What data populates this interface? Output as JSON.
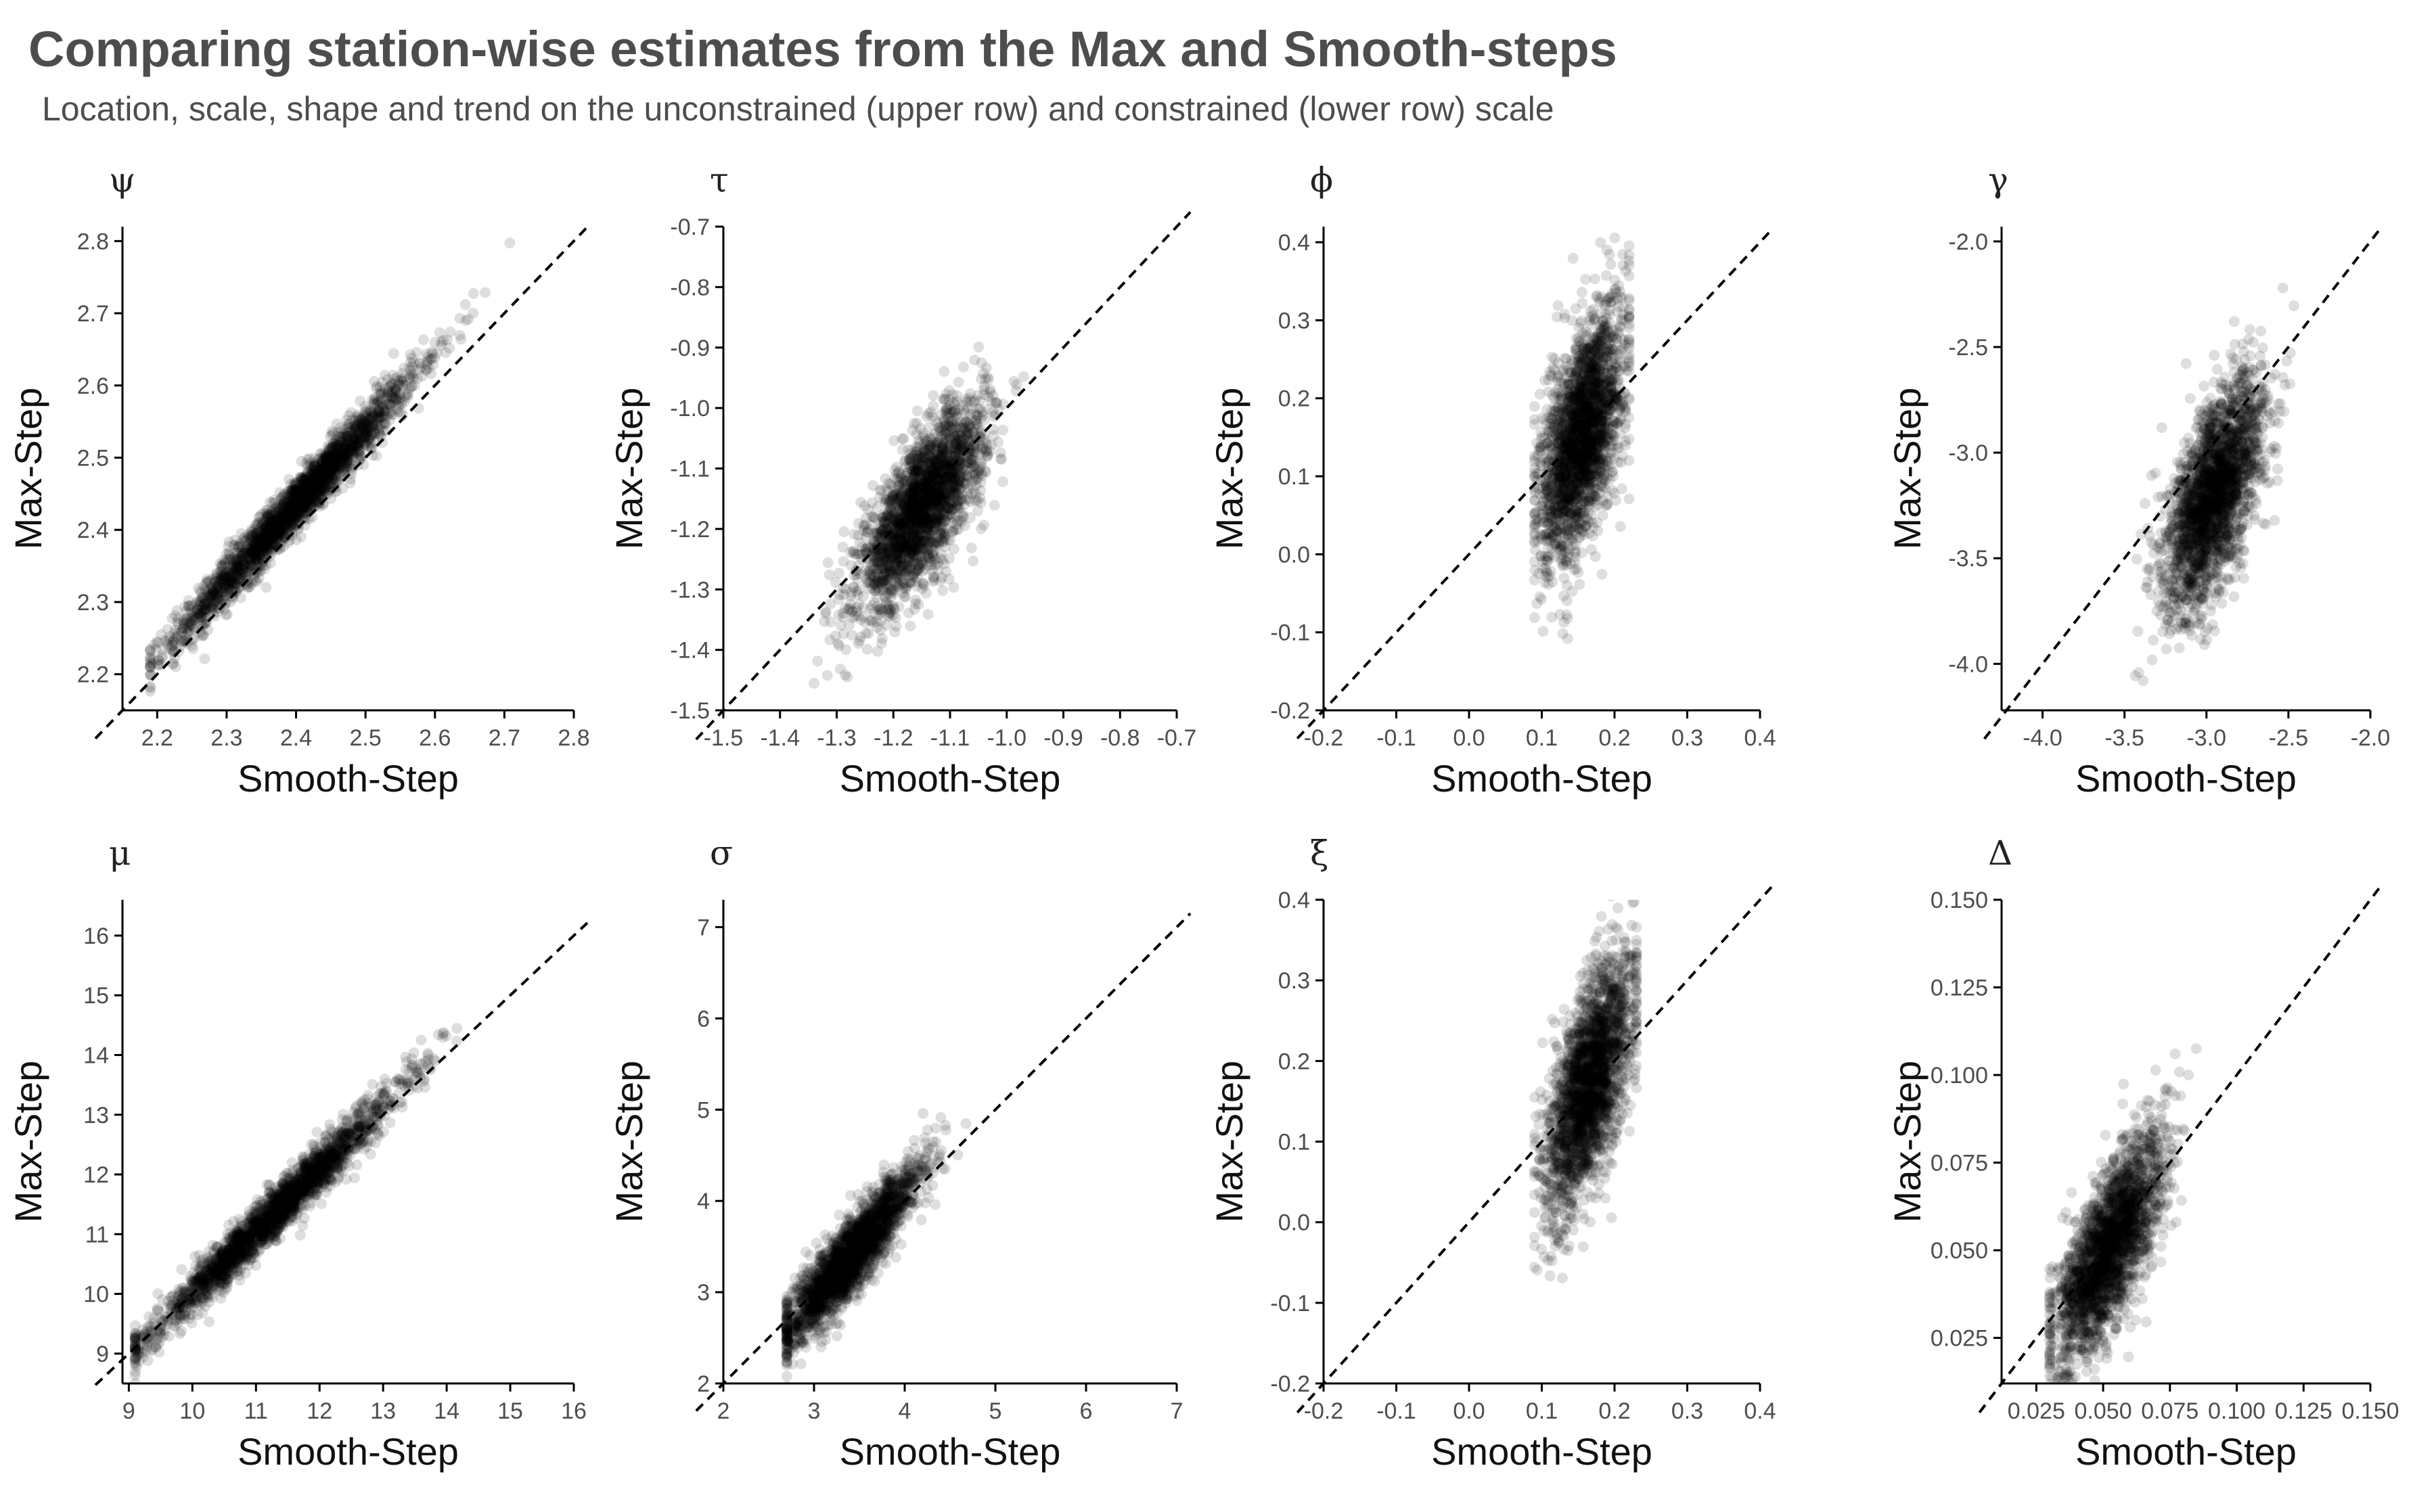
{
  "title": "Comparing station-wise estimates from the Max and Smooth-steps",
  "subtitle": "Location, scale, shape and trend on the unconstrained (upper row) and constrained (lower row) scale",
  "chart_data": [
    {
      "type": "scatter",
      "title": "ψ",
      "xlabel": "Smooth-Step",
      "ylabel": "Max-Step",
      "xlim": [
        2.15,
        2.8
      ],
      "ylim": [
        2.15,
        2.82
      ],
      "xticks": [
        "2.2",
        "2.3",
        "2.4",
        "2.5",
        "2.6",
        "2.7",
        "2.8"
      ],
      "yticks": [
        "2.2",
        "2.3",
        "2.4",
        "2.5",
        "2.6",
        "2.7",
        "2.8"
      ],
      "reference_line": "y = x",
      "grid": false,
      "cloud": {
        "n": 2400,
        "x_center": 2.4,
        "x_sd": 0.085,
        "slope": 1.05,
        "y_intercept": -0.085,
        "y_sd": 0.018,
        "x_min": 2.19,
        "x_max": 2.74
      }
    },
    {
      "type": "scatter",
      "title": "τ",
      "xlabel": "Smooth-Step",
      "ylabel": "Max-Step",
      "xlim": [
        -1.5,
        -0.7
      ],
      "ylim": [
        -1.5,
        -0.7
      ],
      "xticks": [
        "-1.5",
        "-1.4",
        "-1.3",
        "-1.2",
        "-1.1",
        "-1.0",
        "-0.9",
        "-0.8",
        "-0.7"
      ],
      "yticks": [
        "-1.5",
        "-1.4",
        "-1.3",
        "-1.2",
        "-1.1",
        "-1.0",
        "-0.9",
        "-0.8",
        "-0.7"
      ],
      "reference_line": "y = x",
      "grid": false,
      "cloud": {
        "n": 2400,
        "x_center": -1.15,
        "x_sd": 0.055,
        "slope": 1.1,
        "y_intercept": 0.1,
        "y_sd": 0.055,
        "x_min": -1.34,
        "x_max": -0.97
      }
    },
    {
      "type": "scatter",
      "title": "ϕ",
      "xlabel": "Smooth-Step",
      "ylabel": "Max-Step",
      "xlim": [
        -0.2,
        0.4
      ],
      "ylim": [
        -0.2,
        0.42
      ],
      "xticks": [
        "-0.2",
        "-0.1",
        "0.0",
        "0.1",
        "0.2",
        "0.3",
        "0.4"
      ],
      "yticks": [
        "-0.2",
        "-0.1",
        "0.0",
        "0.1",
        "0.2",
        "0.3",
        "0.4"
      ],
      "reference_line": "y = x",
      "grid": false,
      "cloud": {
        "n": 2400,
        "x_center": 0.155,
        "x_sd": 0.028,
        "slope": 1.6,
        "y_intercept": -0.095,
        "y_sd": 0.065,
        "x_min": 0.09,
        "x_max": 0.22
      }
    },
    {
      "type": "scatter",
      "title": "γ",
      "xlabel": "Smooth-Step",
      "ylabel": "Max-Step",
      "xlim": [
        -4.25,
        -2.0
      ],
      "ylim": [
        -4.22,
        -1.93
      ],
      "xticks": [
        "-4.0",
        "-3.5",
        "-3.0",
        "-2.5",
        "-2.0"
      ],
      "yticks": [
        "-4.0",
        "-3.5",
        "-3.0",
        "-2.5",
        "-2.0"
      ],
      "reference_line": "y = x",
      "grid": false,
      "cloud": {
        "n": 2400,
        "x_center": -2.95,
        "x_sd": 0.15,
        "slope": 1.1,
        "y_intercept": 0.05,
        "y_sd": 0.21,
        "x_min": -3.45,
        "x_max": -2.35
      }
    },
    {
      "type": "scatter",
      "title": "μ",
      "xlabel": "Smooth-Step",
      "ylabel": "Max-Step",
      "xlim": [
        8.9,
        16.0
      ],
      "ylim": [
        8.5,
        16.6
      ],
      "xticks": [
        "9",
        "10",
        "11",
        "12",
        "13",
        "14",
        "15",
        "16"
      ],
      "yticks": [
        "9",
        "10",
        "11",
        "12",
        "13",
        "14",
        "15",
        "16"
      ],
      "reference_line": "y = x",
      "grid": false,
      "cloud": {
        "n": 2400,
        "x_center": 11.3,
        "x_sd": 0.95,
        "slope": 1.05,
        "y_intercept": -0.5,
        "y_sd": 0.2,
        "x_min": 9.1,
        "x_max": 15.5
      }
    },
    {
      "type": "scatter",
      "title": "σ",
      "xlabel": "Smooth-Step",
      "ylabel": "Max-Step",
      "xlim": [
        2.0,
        7.0
      ],
      "ylim": [
        2.0,
        7.3
      ],
      "xticks": [
        "2",
        "3",
        "4",
        "5",
        "6",
        "7"
      ],
      "yticks": [
        "2",
        "3",
        "4",
        "5",
        "6",
        "7"
      ],
      "reference_line": "y = x",
      "grid": false,
      "cloud": {
        "n": 2400,
        "x_center": 3.4,
        "x_sd": 0.38,
        "slope": 1.2,
        "y_intercept": -0.7,
        "y_sd": 0.2,
        "x_min": 2.7,
        "x_max": 4.9
      }
    },
    {
      "type": "scatter",
      "title": "ξ",
      "xlabel": "Smooth-Step",
      "ylabel": "Max-Step",
      "xlim": [
        -0.2,
        0.4
      ],
      "ylim": [
        -0.2,
        0.4
      ],
      "xticks": [
        "-0.2",
        "-0.1",
        "0.0",
        "0.1",
        "0.2",
        "0.3",
        "0.4"
      ],
      "yticks": [
        "-0.2",
        "-0.1",
        "0.0",
        "0.1",
        "0.2",
        "0.3",
        "0.4"
      ],
      "reference_line": "y = x",
      "grid": false,
      "cloud": {
        "n": 2400,
        "x_center": 0.165,
        "x_sd": 0.03,
        "slope": 1.7,
        "y_intercept": -0.11,
        "y_sd": 0.06,
        "x_min": 0.09,
        "x_max": 0.23
      }
    },
    {
      "type": "scatter",
      "title": "Δ",
      "xlabel": "Smooth-Step",
      "ylabel": "Max-Step",
      "xlim": [
        0.012,
        0.15
      ],
      "ylim": [
        0.012,
        0.15
      ],
      "xticks": [
        "0.025",
        "0.050",
        "0.075",
        "0.100",
        "0.125",
        "0.150"
      ],
      "yticks": [
        "0.025",
        "0.050",
        "0.075",
        "0.100",
        "0.125",
        "0.150"
      ],
      "reference_line": "y = x",
      "grid": false,
      "cloud": {
        "n": 2400,
        "x_center": 0.052,
        "x_sd": 0.01,
        "slope": 1.15,
        "y_intercept": -0.01,
        "y_sd": 0.011,
        "x_min": 0.03,
        "x_max": 0.108
      }
    }
  ]
}
